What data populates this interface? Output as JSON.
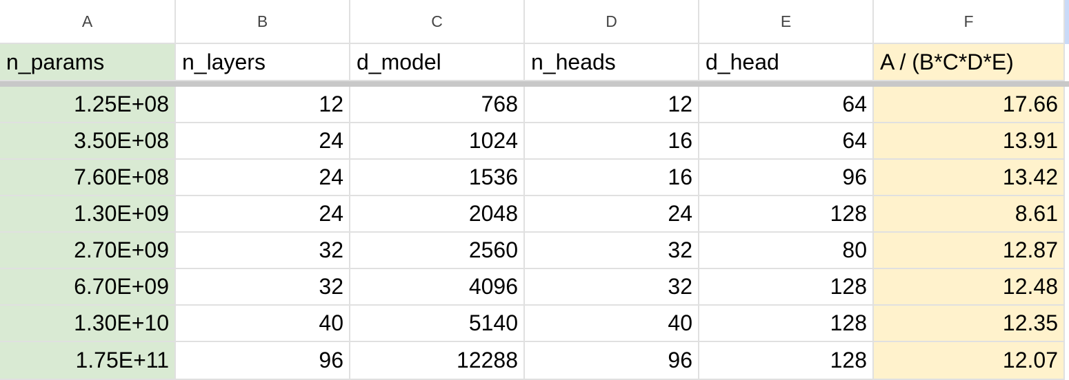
{
  "columns": [
    "A",
    "B",
    "C",
    "D",
    "E",
    "F"
  ],
  "header_row": [
    "n_params",
    "n_layers",
    "d_model",
    "n_heads",
    "d_head",
    "A / (B*C*D*E)"
  ],
  "rows": [
    [
      "1.25E+08",
      "12",
      "768",
      "12",
      "64",
      "17.66"
    ],
    [
      "3.50E+08",
      "24",
      "1024",
      "16",
      "64",
      "13.91"
    ],
    [
      "7.60E+08",
      "24",
      "1536",
      "16",
      "96",
      "13.42"
    ],
    [
      "1.30E+09",
      "24",
      "2048",
      "24",
      "128",
      "8.61"
    ],
    [
      "2.70E+09",
      "32",
      "2560",
      "32",
      "80",
      "12.87"
    ],
    [
      "6.70E+09",
      "32",
      "4096",
      "32",
      "128",
      "12.48"
    ],
    [
      "1.30E+10",
      "40",
      "5140",
      "40",
      "128",
      "12.35"
    ],
    [
      "1.75E+11",
      "96",
      "12288",
      "96",
      "128",
      "12.07"
    ]
  ],
  "colors": {
    "column_a_fill": "#d9ead3",
    "column_f_fill": "#fff2cc",
    "gridline": "#e0e0e0",
    "freeze_bar": "#c8c8c8"
  }
}
